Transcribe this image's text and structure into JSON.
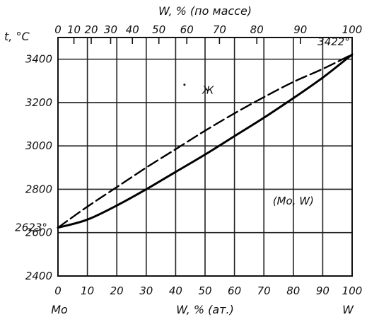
{
  "chart_data": {
    "type": "line",
    "title": "",
    "xlabel": "W, % (ат.)",
    "x2label": "W, % (по массе)",
    "ylabel": "t, °C",
    "x_left_label": "Mo",
    "x_right_label": "W",
    "xlim": [
      0,
      100
    ],
    "ylim": [
      2400,
      3500
    ],
    "grid": true,
    "x_ticks": [
      0,
      10,
      20,
      30,
      40,
      50,
      60,
      70,
      80,
      90,
      100
    ],
    "x_tick_labels": [
      "0",
      "10",
      "20",
      "30",
      "40",
      "50",
      "60",
      "70",
      "80",
      "90",
      "100"
    ],
    "y_ticks": [
      2400,
      2600,
      2800,
      3000,
      3200,
      3400
    ],
    "y_tick_labels": [
      "2400",
      "2600",
      "2800",
      "3000",
      "3200",
      "3400"
    ],
    "top_ticks": [
      {
        "at_atomic": 0,
        "label": "0"
      },
      {
        "at_atomic": 5.42,
        "label": "10"
      },
      {
        "at_atomic": 11.3,
        "label": "20"
      },
      {
        "at_atomic": 17.9,
        "label": "30"
      },
      {
        "at_atomic": 25.3,
        "label": "40"
      },
      {
        "at_atomic": 34.3,
        "label": "50"
      },
      {
        "at_atomic": 43.8,
        "label": "60"
      },
      {
        "at_atomic": 54.9,
        "label": "70"
      },
      {
        "at_atomic": 67.6,
        "label": "80"
      },
      {
        "at_atomic": 82.4,
        "label": "90"
      },
      {
        "at_atomic": 100,
        "label": "100"
      }
    ],
    "series": [
      {
        "style": "dashed",
        "x": [
          0,
          10,
          20,
          30,
          40,
          50,
          60,
          70,
          80,
          90,
          100
        ],
        "y": [
          2623,
          2720,
          2810,
          2900,
          2985,
          3070,
          3150,
          3225,
          3295,
          3355,
          3422
        ]
      },
      {
        "style": "solid",
        "x": [
          0,
          10,
          20,
          30,
          40,
          50,
          60,
          70,
          80,
          90,
          100
        ],
        "y": [
          2623,
          2660,
          2725,
          2800,
          2880,
          2960,
          3045,
          3130,
          3220,
          3315,
          3422
        ]
      }
    ],
    "annotations": [
      {
        "text": "2623°",
        "x": 0,
        "y": 2623
      },
      {
        "text": "3422°",
        "x": 100,
        "y": 3422
      },
      {
        "text": "Ж",
        "x": 51,
        "y": 3240
      },
      {
        "text": "(Mo, W)",
        "x": 80,
        "y": 2730
      }
    ]
  }
}
